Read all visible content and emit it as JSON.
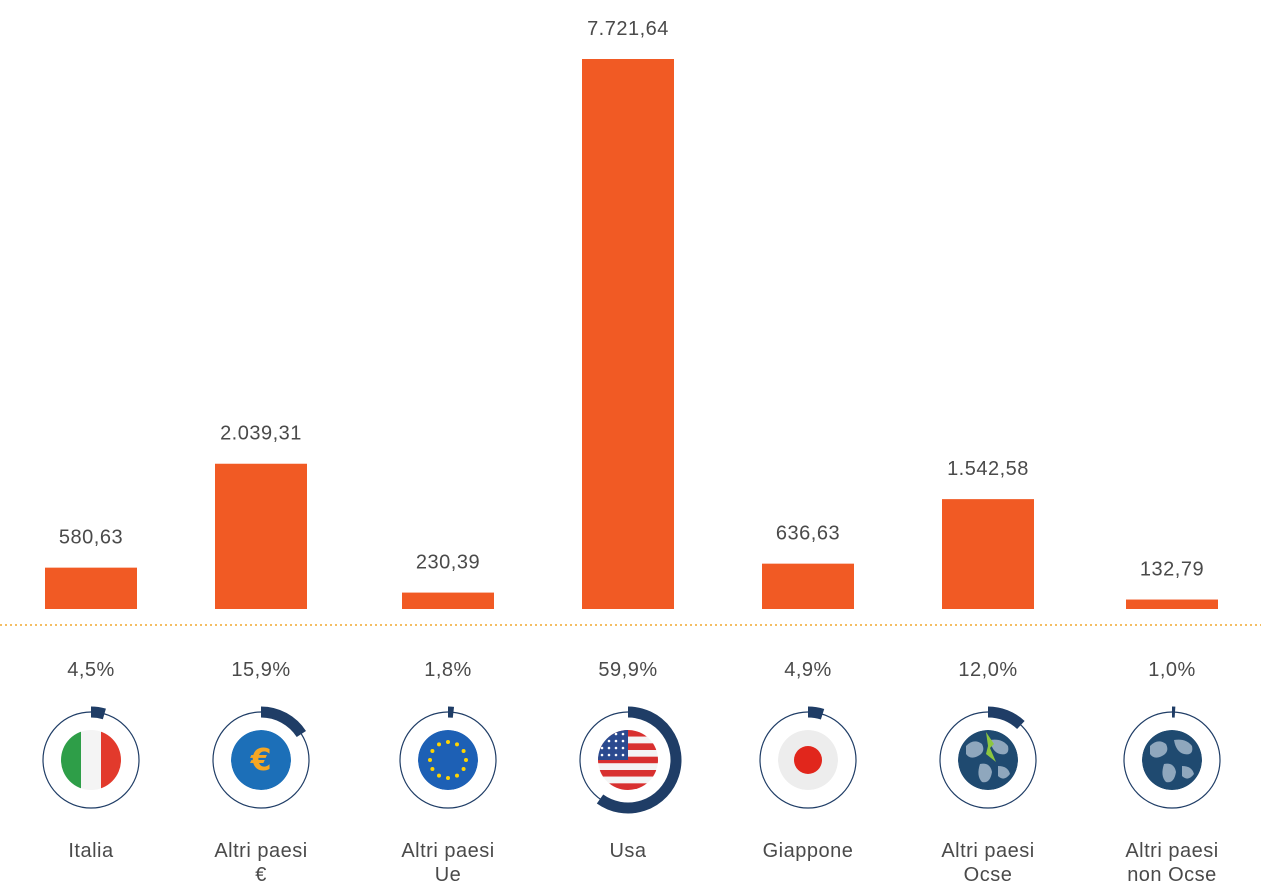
{
  "chart_data": {
    "type": "bar",
    "categories": [
      [
        "Italia"
      ],
      [
        "Altri paesi",
        "€"
      ],
      [
        "Altri paesi",
        "Ue"
      ],
      [
        "Usa"
      ],
      [
        "Giappone"
      ],
      [
        "Altri paesi",
        "Ocse"
      ],
      [
        "Altri paesi",
        "non Ocse"
      ]
    ],
    "values": [
      580.63,
      2039.31,
      230.39,
      7721.64,
      636.63,
      1542.58,
      132.79
    ],
    "value_labels": [
      "580,63",
      "2.039,31",
      "230,39",
      "7.721,64",
      "636,63",
      "1.542,58",
      "132,79"
    ],
    "shares": [
      4.5,
      15.9,
      1.8,
      59.9,
      4.9,
      12.0,
      1.0
    ],
    "share_labels": [
      "4,5%",
      "15,9%",
      "1,8%",
      "59,9%",
      "4,9%",
      "12,0%",
      "1,0%"
    ],
    "icons": [
      "italy-flag-icon",
      "euro-coin-icon",
      "eu-flag-icon",
      "usa-flag-icon",
      "japan-flag-icon",
      "globe-ocse-icon",
      "globe-non-ocse-icon"
    ],
    "ylim": [
      0,
      7721.64
    ],
    "title": "",
    "xlabel": "",
    "ylabel": ""
  },
  "colors": {
    "bar": "#f15a24",
    "baseline": "#f0a830",
    "ring": "#1f3d66",
    "text": "#4a4a4a"
  }
}
